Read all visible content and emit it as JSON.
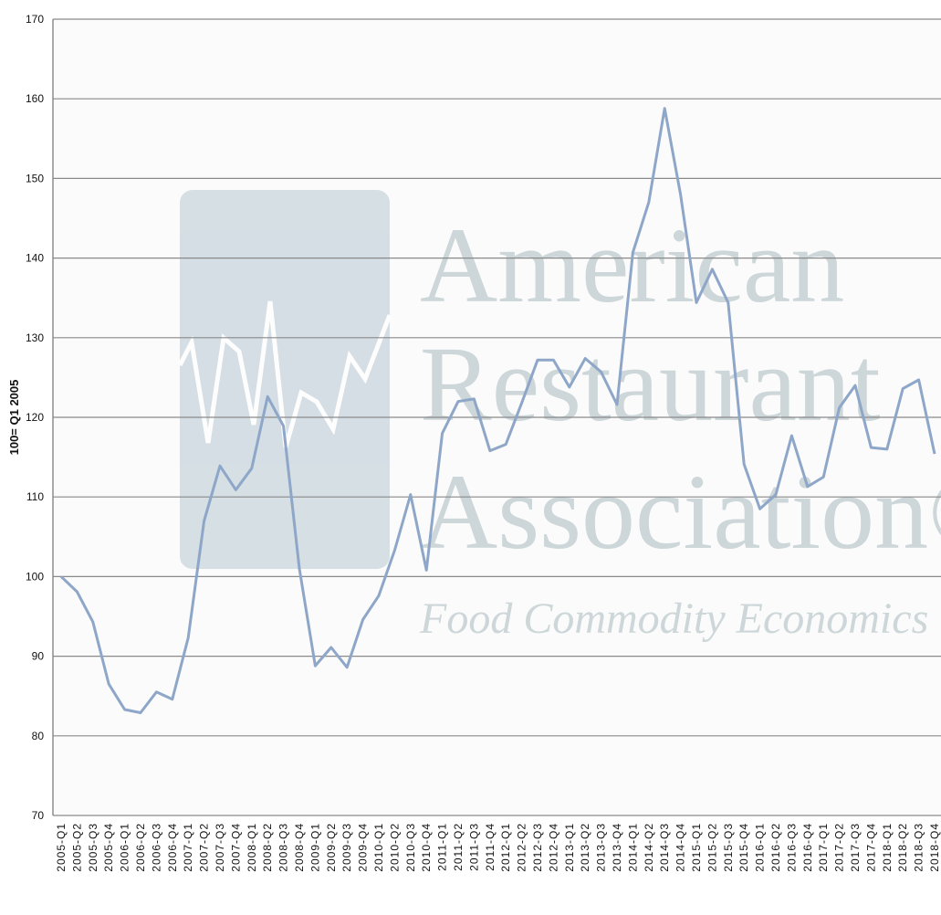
{
  "chart_data": {
    "type": "line",
    "y_label": "100= Q1 2005",
    "watermark": [
      "American",
      "Restaurant",
      "Association®"
    ],
    "watermark_subtitle": "Food Commodity Economics",
    "categories": [
      "2005-Q1",
      "2005-Q2",
      "2005-Q3",
      "2005-Q4",
      "2006-Q1",
      "2006-Q2",
      "2006-Q3",
      "2006-Q4",
      "2007-Q1",
      "2007-Q2",
      "2007-Q3",
      "2007-Q4",
      "2008-Q1",
      "2008-Q2",
      "2008-Q3",
      "2008-Q4",
      "2009-Q1",
      "2009-Q2",
      "2009-Q3",
      "2009-Q4",
      "2010-Q1",
      "2010-Q2",
      "2010-Q3",
      "2010-Q4",
      "2011-Q1",
      "2011-Q2",
      "2011-Q3",
      "2011-Q4",
      "2012-Q1",
      "2012-Q2",
      "2012-Q3",
      "2012-Q4",
      "2013-Q1",
      "2013-Q2",
      "2013-Q3",
      "2013-Q4",
      "2014-Q1",
      "2014-Q2",
      "2014-Q3",
      "2014-Q4",
      "2015-Q1",
      "2015-Q2",
      "2015-Q3",
      "2015-Q4",
      "2016-Q1",
      "2016-Q2",
      "2016-Q3",
      "2016-Q4",
      "2017-Q1",
      "2017-Q2",
      "2017-Q3",
      "2017-Q4",
      "2018-Q1",
      "2018-Q2",
      "2018-Q3",
      "2018-Q4"
    ],
    "values": [
      100,
      98.1,
      94.3,
      86.5,
      83.3,
      82.9,
      85.5,
      84.6,
      92.3,
      107,
      113.9,
      110.9,
      113.6,
      122.6,
      118.9,
      101,
      88.8,
      91.1,
      88.6,
      94.6,
      97.6,
      103.3,
      110.3,
      100.8,
      118,
      122,
      122.3,
      115.8,
      116.6,
      121.8,
      127.2,
      127.2,
      123.8,
      127.4,
      125.7,
      121.6,
      140.7,
      147,
      158.8,
      148,
      134.4,
      138.6,
      134.4,
      114.1,
      108.5,
      110.3,
      117.7,
      111.3,
      112.5,
      121.2,
      124,
      116.2,
      116,
      123.6,
      124.7,
      115.4
    ],
    "color": "#8ea6c8",
    "ylim": [
      70,
      170
    ],
    "yticks": [
      70,
      80,
      90,
      100,
      110,
      120,
      130,
      140,
      150,
      160,
      170
    ],
    "grid": true
  }
}
